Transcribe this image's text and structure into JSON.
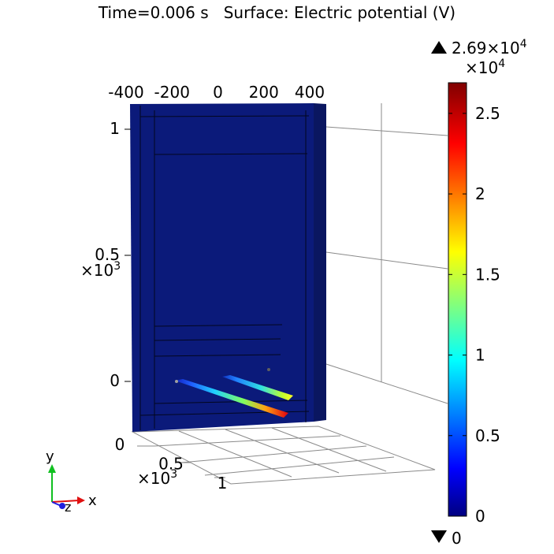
{
  "title": "Time=0.006 s   Surface: Electric potential (V)",
  "chart_data": {
    "type": "surface",
    "time_s": 0.006,
    "quantity": "Electric potential",
    "unit": "V",
    "colorbar": {
      "min": 0,
      "max": 26900,
      "min_label": "0",
      "max_mantissa": "2.69",
      "max_exp_base": "×10",
      "max_exp": "4",
      "scale_base": "×10",
      "scale_exp": "4",
      "ticks": [
        {
          "value": 0,
          "label": "0"
        },
        {
          "value": 0.5,
          "label": "0.5"
        },
        {
          "value": 1,
          "label": "1"
        },
        {
          "value": 1.5,
          "label": "1.5"
        },
        {
          "value": 2,
          "label": "2"
        },
        {
          "value": 2.5,
          "label": "2.5"
        }
      ],
      "colormap": [
        "#000080",
        "#0000ff",
        "#00ffff",
        "#ffff00",
        "#ff0000",
        "#800000"
      ]
    },
    "x_axis": {
      "ticks": [
        {
          "value": -400,
          "label": "-400"
        },
        {
          "value": -200,
          "label": "-200"
        },
        {
          "value": 0,
          "label": "0"
        },
        {
          "value": 200,
          "label": "200"
        },
        {
          "value": 400,
          "label": "400"
        }
      ]
    },
    "y_axis": {
      "scale_base": "×10",
      "scale_exp": "3",
      "ticks": [
        {
          "value": 0,
          "label": "0"
        },
        {
          "value": 0.5,
          "label": "0.5"
        },
        {
          "value": 1,
          "label": "1"
        }
      ]
    },
    "z_axis": {
      "scale_base": "×10",
      "scale_exp": "3",
      "ticks": [
        {
          "value": 0,
          "label": "0"
        },
        {
          "value": 0.5,
          "label": "0.5"
        },
        {
          "value": 1,
          "label": "1"
        }
      ]
    },
    "triad": {
      "x": "x",
      "y": "y",
      "z": "z"
    }
  },
  "colors": {
    "background_field": "#0b1a7a",
    "triad_x": "#e01010",
    "triad_y": "#10c020",
    "triad_z": "#2020e0"
  }
}
